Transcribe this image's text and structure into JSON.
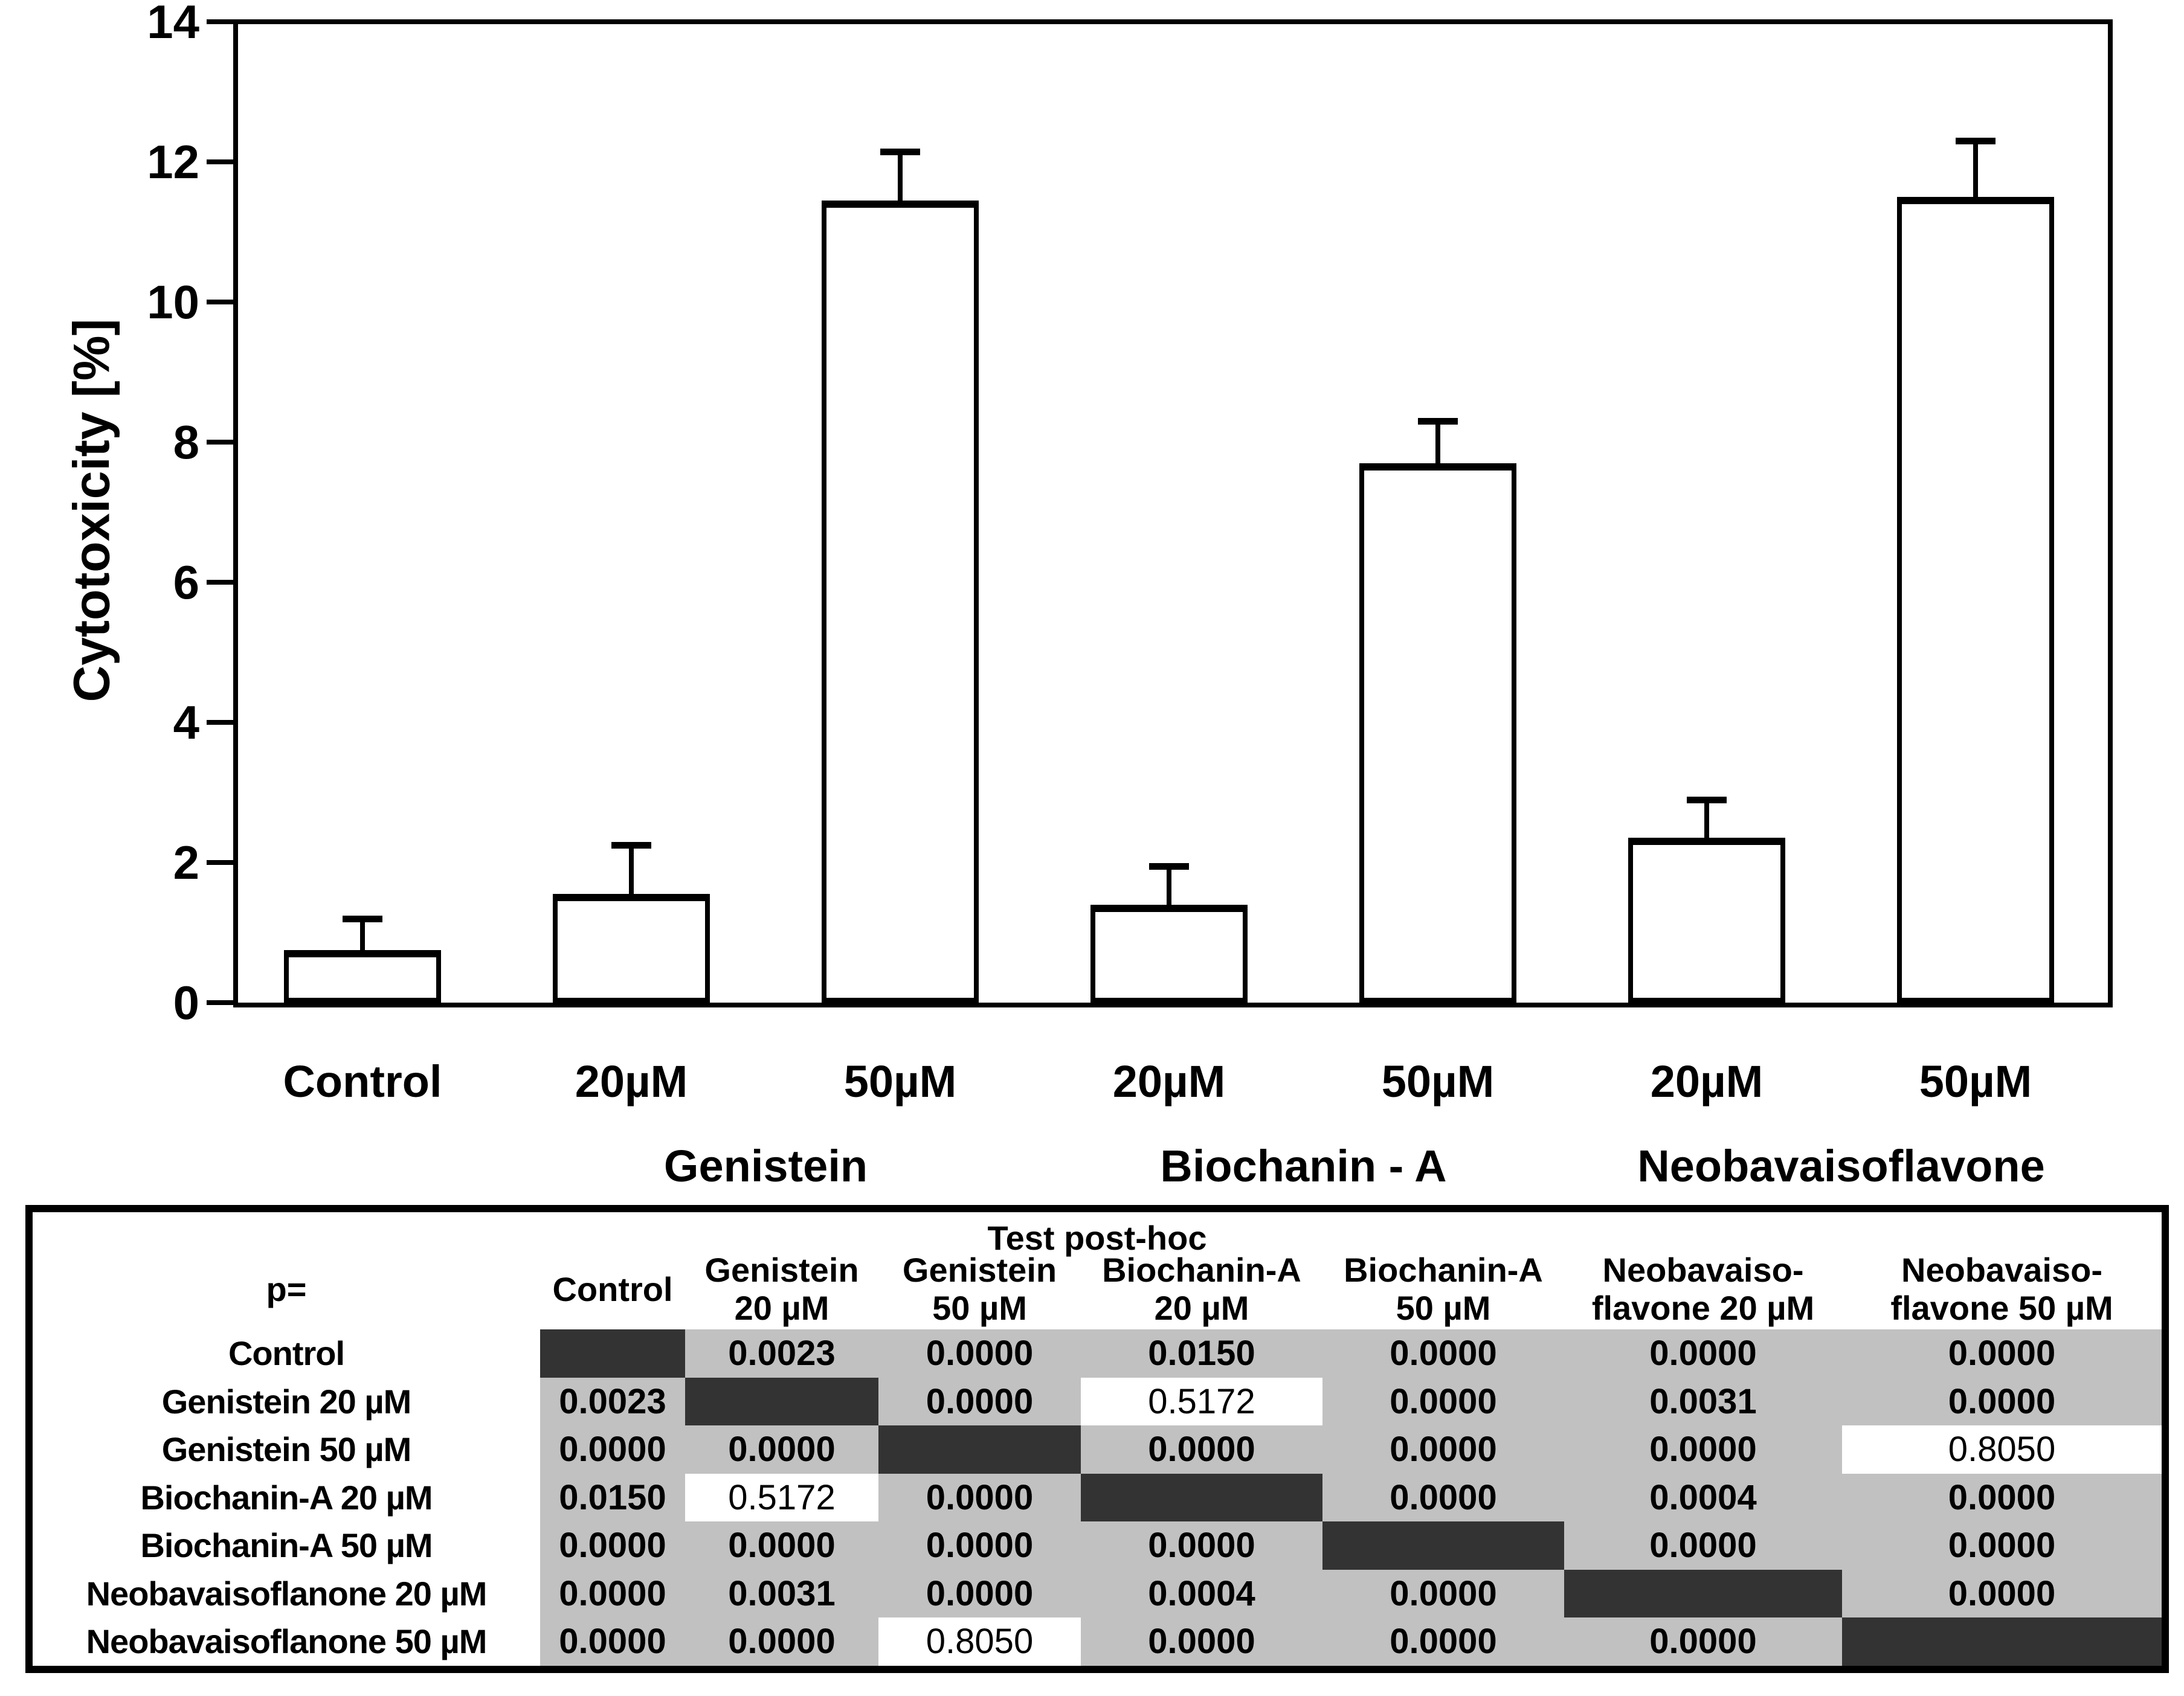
{
  "chart_data": {
    "type": "bar",
    "title": "",
    "xlabel": "",
    "ylabel": "Cytotoxicity [%]",
    "ylim": [
      0,
      14
    ],
    "y_ticks": [
      0,
      2,
      4,
      6,
      8,
      10,
      12,
      14
    ],
    "grid": "off",
    "legend": "none",
    "categories": [
      "Control",
      "20µM",
      "50µM",
      "20µM",
      "50µM",
      "20µM",
      "50µM"
    ],
    "values": [
      0.75,
      1.55,
      11.45,
      1.4,
      7.7,
      2.35,
      11.5
    ],
    "error_upper": [
      1.2,
      2.25,
      12.15,
      1.95,
      8.3,
      2.9,
      12.3
    ],
    "group_labels": [
      {
        "label": "Genistein",
        "span": [
          1,
          2
        ]
      },
      {
        "label": "Biochanin - A",
        "span": [
          3,
          4
        ]
      },
      {
        "label": "Neobavaisoflavone",
        "span": [
          5,
          6
        ]
      }
    ],
    "bar_fill": "#ffffff",
    "bar_border": "#000000"
  },
  "table": {
    "title": "Test post-hoc",
    "corner_label": "p=",
    "col_headers": [
      "Control",
      "Genistein\n20 µM",
      "Genistein\n50 µM",
      "Biochanin-A\n20 µM",
      "Biochanin-A\n50 µM",
      "Neobavaiso-\nflavone 20 µM",
      "Neobavaiso-\nflavone 50 µM"
    ],
    "row_headers": [
      "Control",
      "Genistein 20 µM",
      "Genistein 50 µM",
      "Biochanin-A 20 µM",
      "Biochanin-A 50 µM",
      "Neobavaisoflanone 20 µM",
      "Neobavaisoflanone 50 µM"
    ],
    "cells": [
      [
        "",
        "0.0023",
        "0.0000",
        "0.0150",
        "0.0000",
        "0.0000",
        "0.0000"
      ],
      [
        "0.0023",
        "",
        "0.0000",
        "0.5172",
        "0.0000",
        "0.0031",
        "0.0000"
      ],
      [
        "0.0000",
        "0.0000",
        "",
        "0.0000",
        "0.0000",
        "0.0000",
        "0.8050"
      ],
      [
        "0.0150",
        "0.5172",
        "0.0000",
        "",
        "0.0000",
        "0.0004",
        "0.0000"
      ],
      [
        "0.0000",
        "0.0000",
        "0.0000",
        "0.0000",
        "",
        "0.0000",
        "0.0000"
      ],
      [
        "0.0000",
        "0.0031",
        "0.0000",
        "0.0004",
        "0.0000",
        "",
        "0.0000"
      ],
      [
        "0.0000",
        "0.0000",
        "0.8050",
        "0.0000",
        "0.0000",
        "0.0000",
        ""
      ]
    ],
    "highlight_cells": [
      [
        1,
        3
      ],
      [
        2,
        6
      ],
      [
        3,
        1
      ],
      [
        6,
        2
      ]
    ],
    "colors": {
      "cell_bg": "#c1c1c1",
      "diagonal_bg": "#333333",
      "highlight_bg": "#ffffff",
      "border": "#000000"
    }
  }
}
